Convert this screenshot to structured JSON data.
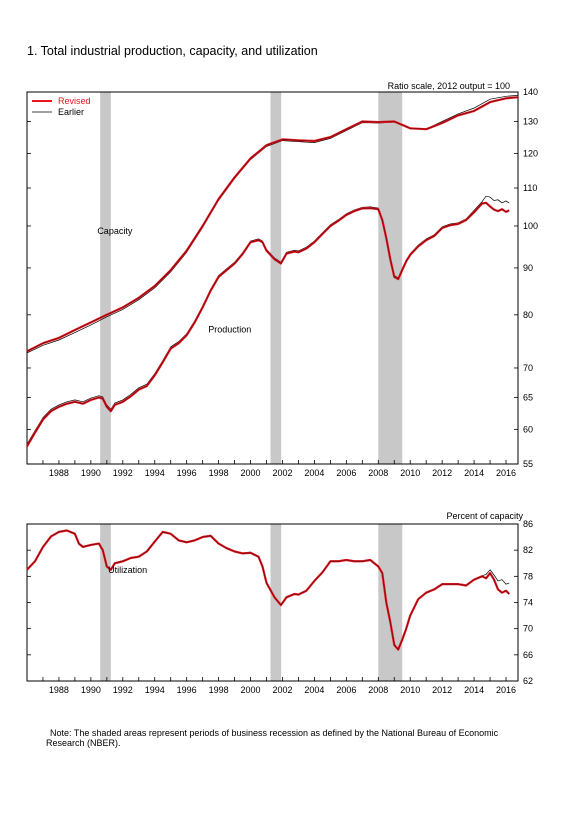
{
  "figure_title": "1. Total industrial production, capacity, and utilization",
  "note": {
    "line1": "Note: The shaded areas represent periods of business recession as defined by the National Bureau of Economic",
    "line2": "Research (NBER)."
  },
  "colors": {
    "revised": "#e8141e",
    "revised_shadow": "#5a0a0a",
    "earlier": "#000000",
    "recession": "#c8c8c8"
  },
  "recessions": [
    [
      1990.58,
      1991.25
    ],
    [
      2001.25,
      2001.92
    ],
    [
      2008.0,
      2009.5
    ]
  ],
  "chart_data": [
    {
      "type": "line",
      "name": "top-panel",
      "axis_title": "Ratio scale, 2012 output = 100",
      "scale": "log",
      "x_ticks": [
        1988,
        1990,
        1992,
        1994,
        1996,
        1998,
        2000,
        2002,
        2004,
        2006,
        2008,
        2010,
        2012,
        2014,
        2016
      ],
      "xlim": [
        1986.0,
        2016.75
      ],
      "ylim": [
        55,
        140
      ],
      "y_ticks": [
        55,
        60,
        65,
        70,
        80,
        90,
        100,
        110,
        120,
        130,
        140
      ],
      "legend": {
        "position": "top-left",
        "entries": [
          "Revised",
          "Earlier"
        ]
      },
      "annotations": [
        {
          "text": "Capacity",
          "x": 1991.5,
          "y": 98
        },
        {
          "text": "Production",
          "x": 1998.7,
          "y": 76.5
        }
      ],
      "series": [
        {
          "name": "Capacity (Revised)",
          "x": [
            1986.0,
            1987,
            1988,
            1989,
            1990,
            1991,
            1992,
            1993,
            1994,
            1995,
            1996,
            1997,
            1998,
            1999,
            2000,
            2001,
            2002,
            2003,
            2004,
            2005,
            2006,
            2007,
            2008,
            2009,
            2010,
            2011,
            2012,
            2013,
            2014,
            2015,
            2016,
            2016.75
          ],
          "values": [
            73.0,
            74.5,
            75.5,
            77.0,
            78.5,
            80.0,
            81.5,
            83.5,
            86.0,
            89.5,
            94.0,
            100.0,
            107.0,
            113.0,
            118.5,
            122.5,
            124.3,
            124.0,
            123.8,
            125.0,
            127.5,
            130.0,
            129.8,
            130.0,
            127.8,
            127.5,
            129.5,
            132.0,
            133.5,
            136.5,
            137.8,
            138.2
          ]
        },
        {
          "name": "Capacity (Earlier)",
          "x": [
            1986.0,
            1987,
            1988,
            1989,
            1990,
            1991,
            1992,
            1993,
            1994,
            1995,
            1996,
            1997,
            1998,
            1999,
            2000,
            2001,
            2002,
            2003,
            2004,
            2005,
            2006,
            2007,
            2008,
            2009,
            2010,
            2011,
            2012,
            2013,
            2014,
            2015,
            2016,
            2016.75
          ],
          "values": [
            72.7,
            74.1,
            75.1,
            76.5,
            78.0,
            79.6,
            81.1,
            83.1,
            85.6,
            89.1,
            93.6,
            99.6,
            106.6,
            112.6,
            118.1,
            122.1,
            123.9,
            123.6,
            123.3,
            124.6,
            127.1,
            129.6,
            129.5,
            129.8,
            127.6,
            127.6,
            130.0,
            132.5,
            134.5,
            137.5,
            138.5,
            138.8
          ]
        },
        {
          "name": "Production (Revised)",
          "x": [
            1986.0,
            1986.5,
            1987,
            1987.5,
            1988,
            1988.5,
            1989,
            1989.5,
            1990,
            1990.5,
            1990.75,
            1991,
            1991.25,
            1991.5,
            1992,
            1992.5,
            1993,
            1993.5,
            1994,
            1994.5,
            1995,
            1995.5,
            1996,
            1996.5,
            1997,
            1997.5,
            1998,
            1998.5,
            1999,
            1999.5,
            2000,
            2000.5,
            2000.75,
            2001,
            2001.5,
            2001.9,
            2002.25,
            2002.75,
            2003,
            2003.5,
            2004,
            2004.5,
            2005,
            2005.5,
            2006,
            2006.5,
            2007,
            2007.5,
            2008,
            2008.25,
            2008.5,
            2008.75,
            2009,
            2009.25,
            2009.5,
            2009.75,
            2010,
            2010.5,
            2011,
            2011.5,
            2012,
            2012.5,
            2013,
            2013.5,
            2014,
            2014.5,
            2014.75,
            2015,
            2015.25,
            2015.5,
            2015.75,
            2016,
            2016.2
          ],
          "values": [
            57.5,
            59.5,
            61.5,
            62.8,
            63.5,
            64.0,
            64.3,
            64.0,
            64.6,
            65.0,
            64.8,
            63.5,
            62.8,
            63.8,
            64.3,
            65.2,
            66.3,
            66.9,
            68.7,
            71.0,
            73.5,
            74.5,
            76.0,
            78.5,
            81.5,
            85.0,
            88.0,
            89.5,
            91.0,
            93.2,
            96.0,
            96.5,
            96.0,
            94.0,
            92.0,
            91.0,
            93.3,
            93.8,
            93.6,
            94.5,
            96.0,
            98.0,
            100.0,
            101.3,
            102.8,
            103.8,
            104.5,
            104.6,
            104.3,
            101.5,
            97.0,
            92.0,
            88.0,
            87.5,
            89.5,
            91.5,
            93.0,
            95.0,
            96.5,
            97.5,
            99.5,
            100.2,
            100.5,
            101.5,
            103.5,
            105.8,
            106.0,
            105.0,
            104.2,
            103.8,
            104.3,
            103.6,
            104.0
          ]
        },
        {
          "name": "Production (Earlier)",
          "x": [
            1986.0,
            1986.5,
            1987,
            1987.5,
            1988,
            1988.5,
            1989,
            1989.5,
            1990,
            1990.5,
            1990.75,
            1991,
            1991.25,
            1991.5,
            1992,
            1992.5,
            1993,
            1993.5,
            1994,
            1994.5,
            1995,
            1995.5,
            1996,
            1996.5,
            1997,
            1997.5,
            1998,
            1998.5,
            1999,
            1999.5,
            2000,
            2000.5,
            2000.75,
            2001,
            2001.5,
            2001.9,
            2002.25,
            2002.75,
            2003,
            2003.5,
            2004,
            2004.5,
            2005,
            2005.5,
            2006,
            2006.5,
            2007,
            2007.5,
            2008,
            2008.25,
            2008.5,
            2008.75,
            2009,
            2009.25,
            2009.5,
            2009.75,
            2010,
            2010.5,
            2011,
            2011.5,
            2012,
            2012.5,
            2013,
            2013.5,
            2014,
            2014.5,
            2014.75,
            2015,
            2015.25,
            2015.5,
            2015.75,
            2016,
            2016.2
          ],
          "values": [
            57.8,
            59.8,
            61.8,
            63.1,
            63.8,
            64.3,
            64.6,
            64.3,
            64.9,
            65.3,
            65.1,
            63.8,
            63.1,
            64.1,
            64.6,
            65.5,
            66.6,
            67.2,
            69.0,
            71.3,
            73.8,
            74.8,
            76.3,
            78.8,
            81.8,
            85.3,
            88.3,
            89.8,
            91.3,
            93.5,
            96.3,
            96.8,
            96.3,
            94.3,
            92.3,
            91.3,
            93.6,
            94.1,
            93.9,
            94.8,
            96.3,
            98.3,
            100.3,
            101.6,
            103.1,
            104.1,
            104.8,
            104.9,
            104.6,
            101.8,
            97.3,
            92.3,
            88.3,
            87.8,
            89.8,
            91.8,
            93.3,
            95.3,
            96.8,
            97.8,
            99.8,
            100.5,
            100.8,
            101.8,
            104.0,
            106.3,
            107.8,
            107.5,
            106.6,
            106.8,
            106.0,
            106.5,
            105.9
          ]
        }
      ]
    },
    {
      "type": "line",
      "name": "bottom-panel",
      "axis_title": "Percent of capacity",
      "x_ticks": [
        1988,
        1990,
        1992,
        1994,
        1996,
        1998,
        2000,
        2002,
        2004,
        2006,
        2008,
        2010,
        2012,
        2014,
        2016
      ],
      "xlim": [
        1986.0,
        2016.75
      ],
      "ylim": [
        62,
        86
      ],
      "y_ticks": [
        62,
        66,
        70,
        74,
        78,
        82,
        86
      ],
      "annotations": [
        {
          "text": "Utilization",
          "x": 1992.3,
          "y": 78.5
        }
      ],
      "series": [
        {
          "name": "Utilization (Revised)",
          "x": [
            1986.0,
            1986.5,
            1987,
            1987.5,
            1988,
            1988.5,
            1989,
            1989.25,
            1989.5,
            1990,
            1990.5,
            1990.75,
            1991,
            1991.25,
            1991.5,
            1992,
            1992.5,
            1993,
            1993.5,
            1994,
            1994.5,
            1995,
            1995.5,
            1996,
            1996.5,
            1997,
            1997.5,
            1998,
            1998.5,
            1999,
            1999.5,
            2000,
            2000.5,
            2000.75,
            2001,
            2001.5,
            2001.9,
            2002.25,
            2002.75,
            2003,
            2003.5,
            2004,
            2004.5,
            2005,
            2005.5,
            2006,
            2006.5,
            2007,
            2007.5,
            2008,
            2008.25,
            2008.5,
            2008.75,
            2009,
            2009.25,
            2009.5,
            2009.75,
            2010,
            2010.5,
            2011,
            2011.5,
            2012,
            2012.5,
            2013,
            2013.5,
            2014,
            2014.5,
            2014.75,
            2015,
            2015.25,
            2015.5,
            2015.75,
            2016,
            2016.2
          ],
          "values": [
            79.0,
            80.3,
            82.5,
            84.1,
            84.8,
            85.0,
            84.5,
            83.0,
            82.5,
            82.8,
            83.0,
            82.0,
            79.5,
            79.0,
            80.0,
            80.3,
            80.8,
            81.0,
            81.8,
            83.3,
            84.8,
            84.5,
            83.5,
            83.2,
            83.5,
            84.0,
            84.2,
            83.0,
            82.3,
            81.8,
            81.5,
            81.6,
            81.0,
            79.5,
            77.0,
            74.8,
            73.6,
            74.8,
            75.3,
            75.2,
            75.8,
            77.3,
            78.6,
            80.3,
            80.3,
            80.5,
            80.3,
            80.3,
            80.5,
            79.5,
            78.5,
            74.0,
            71.0,
            67.5,
            66.8,
            68.3,
            70.0,
            72.0,
            74.5,
            75.5,
            76.0,
            76.8,
            76.8,
            76.8,
            76.6,
            77.5,
            78.0,
            77.7,
            78.5,
            77.5,
            76.0,
            75.5,
            75.8,
            75.3
          ]
        },
        {
          "name": "Utilization (Earlier)",
          "x": [
            1986.0,
            1986.5,
            1987,
            1987.5,
            1988,
            1988.5,
            1989,
            1989.25,
            1989.5,
            1990,
            1990.5,
            1990.75,
            1991,
            1991.25,
            1991.5,
            1992,
            1992.5,
            1993,
            1993.5,
            1994,
            1994.5,
            1995,
            1995.5,
            1996,
            1996.5,
            1997,
            1997.5,
            1998,
            1998.5,
            1999,
            1999.5,
            2000,
            2000.5,
            2000.75,
            2001,
            2001.5,
            2001.9,
            2002.25,
            2002.75,
            2003,
            2003.5,
            2004,
            2004.5,
            2005,
            2005.5,
            2006,
            2006.5,
            2007,
            2007.5,
            2008,
            2008.25,
            2008.5,
            2008.75,
            2009,
            2009.25,
            2009.5,
            2009.75,
            2010,
            2010.5,
            2011,
            2011.5,
            2012,
            2012.5,
            2013,
            2013.5,
            2014,
            2014.5,
            2014.75,
            2015,
            2015.25,
            2015.5,
            2015.75,
            2016,
            2016.2
          ],
          "values": [
            79.1,
            80.4,
            82.6,
            84.2,
            84.9,
            85.1,
            84.6,
            83.1,
            82.6,
            82.9,
            83.1,
            82.1,
            79.6,
            79.1,
            80.1,
            80.4,
            80.9,
            81.1,
            81.9,
            83.4,
            84.9,
            84.6,
            83.6,
            83.3,
            83.6,
            84.1,
            84.3,
            83.1,
            82.4,
            81.9,
            81.6,
            81.7,
            81.1,
            79.6,
            77.1,
            74.9,
            73.7,
            74.9,
            75.4,
            75.3,
            75.9,
            77.4,
            78.7,
            80.4,
            80.4,
            80.6,
            80.4,
            80.4,
            80.6,
            79.6,
            78.6,
            74.1,
            71.1,
            67.6,
            66.9,
            68.4,
            70.1,
            72.1,
            74.6,
            75.6,
            76.1,
            76.9,
            76.9,
            76.9,
            76.7,
            77.6,
            78.1,
            78.3,
            79.0,
            78.2,
            77.3,
            77.5,
            76.8,
            77.0
          ]
        }
      ]
    }
  ]
}
